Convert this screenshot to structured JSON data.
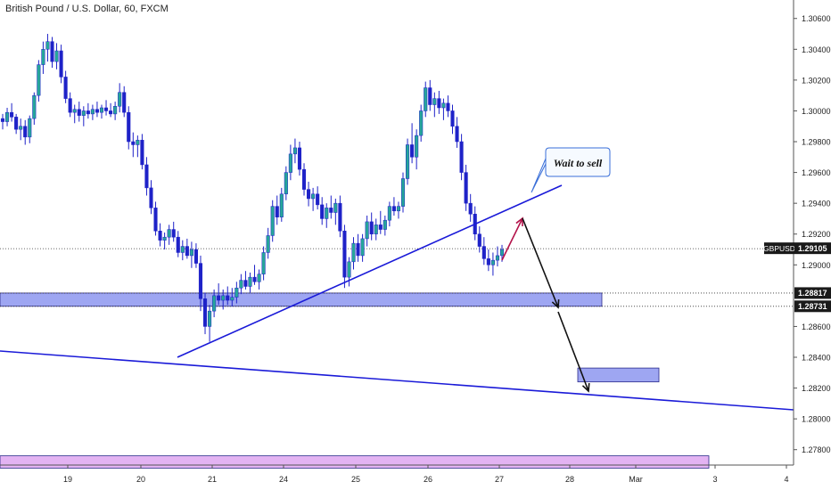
{
  "chart_data": {
    "type": "candlestick",
    "title": "British Pound / U.S. Dollar, 60, FXCM",
    "symbol": "GBPUSD",
    "last_price": 1.29105,
    "ylim": [
      1.277,
      1.3072
    ],
    "grid": false,
    "y_ticks": [
      "1.30600",
      "1.30400",
      "1.30200",
      "1.30000",
      "1.29800",
      "1.29600",
      "1.29400",
      "1.29200",
      "1.29000",
      "1.28600",
      "1.28400",
      "1.28200",
      "1.28000",
      "1.27800"
    ],
    "y_tick_values": [
      1.306,
      1.304,
      1.302,
      1.3,
      1.298,
      1.296,
      1.294,
      1.292,
      1.29,
      1.286,
      1.284,
      1.282,
      1.28,
      1.278
    ],
    "x_ticks": [
      "19",
      "20",
      "21",
      "24",
      "25",
      "26",
      "27",
      "28",
      "Mar",
      "3",
      "4"
    ],
    "price_labels": [
      {
        "text": "GBPUSD",
        "value": 1.29105,
        "style": "dark"
      },
      {
        "text": "1.29105",
        "value": 1.29105,
        "style": "dark"
      },
      {
        "text": "1.28817",
        "value": 1.28817,
        "style": "dark"
      },
      {
        "text": "1.28731",
        "value": 1.28731,
        "style": "dark"
      }
    ],
    "horizontal_levels": [
      1.29105,
      1.28817,
      1.28731
    ],
    "zones": [
      {
        "from_tick": "19",
        "to_tick": "28",
        "low": 1.28731,
        "high": 1.28817,
        "color": "#9ea6f2"
      },
      {
        "from_tick": "28",
        "to_tick": "Mar",
        "low": 1.2824,
        "high": 1.2833,
        "color": "#9ea6f2"
      },
      {
        "from_tick": "19",
        "to_tick": "3",
        "low": 1.2768,
        "high": 1.2776,
        "color": "#e3b3f2"
      }
    ],
    "callout": {
      "text": "Wait to sell"
    },
    "accent_colors": {
      "up": "#26a69a",
      "down": "#1e22c8",
      "trendline": "#1a1ad8",
      "arrow_up": "#b3124a",
      "arrow_down": "#111111"
    },
    "candles": [
      [
        1.2995,
        1.2998,
        1.2988,
        1.2993
      ],
      [
        1.2993,
        1.3002,
        1.299,
        1.2999
      ],
      [
        1.2999,
        1.3005,
        1.2993,
        1.2996
      ],
      [
        1.2996,
        1.2998,
        1.2985,
        1.2988
      ],
      [
        1.2988,
        1.2995,
        1.2981,
        1.299
      ],
      [
        1.299,
        1.2994,
        1.2978,
        1.2983
      ],
      [
        1.2983,
        1.2997,
        1.2979,
        1.2995
      ],
      [
        1.2995,
        1.3012,
        1.2991,
        1.301
      ],
      [
        1.301,
        1.3033,
        1.3006,
        1.303
      ],
      [
        1.303,
        1.3045,
        1.3024,
        1.304
      ],
      [
        1.304,
        1.305,
        1.3032,
        1.3045
      ],
      [
        1.3045,
        1.3048,
        1.3028,
        1.3032
      ],
      [
        1.3032,
        1.3044,
        1.3027,
        1.3039
      ],
      [
        1.3039,
        1.3043,
        1.3018,
        1.3022
      ],
      [
        1.3022,
        1.3026,
        1.3005,
        1.3008
      ],
      [
        1.3008,
        1.3012,
        1.2996,
        1.2999
      ],
      [
        1.2999,
        1.3004,
        1.2992,
        1.3001
      ],
      [
        1.3001,
        1.3006,
        1.2993,
        1.2997
      ],
      [
        1.2997,
        1.3003,
        1.299,
        1.3
      ],
      [
        1.3,
        1.3005,
        1.2995,
        1.2998
      ],
      [
        1.2998,
        1.3004,
        1.2994,
        1.3001
      ],
      [
        1.3001,
        1.3006,
        1.2996,
        1.2999
      ],
      [
        1.2999,
        1.3004,
        1.2995,
        1.3002
      ],
      [
        1.3002,
        1.3007,
        1.2997,
        1.3
      ],
      [
        1.3,
        1.3005,
        1.2996,
        1.2998
      ],
      [
        1.2998,
        1.3006,
        1.2994,
        1.3003
      ],
      [
        1.3003,
        1.3018,
        1.2999,
        1.3012
      ],
      [
        1.3012,
        1.3016,
        1.2996,
        1.2999
      ],
      [
        1.2999,
        1.3003,
        1.2975,
        1.298
      ],
      [
        1.298,
        1.2986,
        1.297,
        1.2978
      ],
      [
        1.2978,
        1.2984,
        1.297,
        1.2981
      ],
      [
        1.2981,
        1.2985,
        1.2962,
        1.2965
      ],
      [
        1.2965,
        1.297,
        1.2945,
        1.295
      ],
      [
        1.295,
        1.2955,
        1.2933,
        1.2937
      ],
      [
        1.2937,
        1.2941,
        1.2919,
        1.2922
      ],
      [
        1.2922,
        1.2927,
        1.2912,
        1.2916
      ],
      [
        1.2916,
        1.2921,
        1.291,
        1.2918
      ],
      [
        1.2918,
        1.2926,
        1.2913,
        1.2923
      ],
      [
        1.2923,
        1.2928,
        1.2915,
        1.2918
      ],
      [
        1.2918,
        1.2922,
        1.2905,
        1.2908
      ],
      [
        1.2908,
        1.2916,
        1.2903,
        1.2912
      ],
      [
        1.2912,
        1.2917,
        1.2904,
        1.2906
      ],
      [
        1.2906,
        1.2915,
        1.2898,
        1.291
      ],
      [
        1.291,
        1.2914,
        1.2898,
        1.2901
      ],
      [
        1.2901,
        1.2906,
        1.287,
        1.2878
      ],
      [
        1.2878,
        1.2882,
        1.2855,
        1.286
      ],
      [
        1.286,
        1.2874,
        1.285,
        1.287
      ],
      [
        1.287,
        1.2884,
        1.2866,
        1.288
      ],
      [
        1.288,
        1.2888,
        1.2874,
        1.2877
      ],
      [
        1.2877,
        1.2884,
        1.2871,
        1.288
      ],
      [
        1.288,
        1.2886,
        1.2874,
        1.2877
      ],
      [
        1.2877,
        1.2885,
        1.2873,
        1.2879
      ],
      [
        1.2879,
        1.2889,
        1.2875,
        1.2885
      ],
      [
        1.2885,
        1.2894,
        1.2881,
        1.289
      ],
      [
        1.289,
        1.2896,
        1.2884,
        1.2886
      ],
      [
        1.2886,
        1.2895,
        1.2882,
        1.2892
      ],
      [
        1.2892,
        1.29,
        1.2887,
        1.2889
      ],
      [
        1.2889,
        1.2897,
        1.2884,
        1.2894
      ],
      [
        1.2894,
        1.2912,
        1.289,
        1.2908
      ],
      [
        1.2908,
        1.2924,
        1.2904,
        1.2919
      ],
      [
        1.2919,
        1.2942,
        1.2915,
        1.2938
      ],
      [
        1.2938,
        1.2945,
        1.2926,
        1.2931
      ],
      [
        1.2931,
        1.295,
        1.2928,
        1.2946
      ],
      [
        1.2946,
        1.2964,
        1.2942,
        1.296
      ],
      [
        1.296,
        1.2978,
        1.2955,
        1.2972
      ],
      [
        1.2972,
        1.2982,
        1.2966,
        1.2976
      ],
      [
        1.2976,
        1.298,
        1.2958,
        1.2962
      ],
      [
        1.2962,
        1.2966,
        1.2945,
        1.2949
      ],
      [
        1.2949,
        1.2954,
        1.2938,
        1.2943
      ],
      [
        1.2943,
        1.295,
        1.2935,
        1.2946
      ],
      [
        1.2946,
        1.2951,
        1.2936,
        1.2939
      ],
      [
        1.2939,
        1.2944,
        1.2926,
        1.293
      ],
      [
        1.293,
        1.294,
        1.2924,
        1.2937
      ],
      [
        1.2937,
        1.2945,
        1.293,
        1.2934
      ],
      [
        1.2934,
        1.2943,
        1.2926,
        1.294
      ],
      [
        1.294,
        1.2945,
        1.2918,
        1.2922
      ],
      [
        1.2922,
        1.2926,
        1.2885,
        1.2892
      ],
      [
        1.2892,
        1.2905,
        1.2886,
        1.2902
      ],
      [
        1.2902,
        1.2918,
        1.2897,
        1.2914
      ],
      [
        1.2914,
        1.292,
        1.2902,
        1.2906
      ],
      [
        1.2906,
        1.292,
        1.2902,
        1.2917
      ],
      [
        1.2917,
        1.2932,
        1.2912,
        1.2928
      ],
      [
        1.2928,
        1.2934,
        1.2916,
        1.292
      ],
      [
        1.292,
        1.293,
        1.2916,
        1.2926
      ],
      [
        1.2926,
        1.2935,
        1.292,
        1.2923
      ],
      [
        1.2923,
        1.2932,
        1.2919,
        1.2929
      ],
      [
        1.2929,
        1.2941,
        1.2925,
        1.2938
      ],
      [
        1.2938,
        1.2944,
        1.2932,
        1.2935
      ],
      [
        1.2935,
        1.2941,
        1.293,
        1.2938
      ],
      [
        1.2938,
        1.296,
        1.2934,
        1.2956
      ],
      [
        1.2956,
        1.2982,
        1.2952,
        1.2978
      ],
      [
        1.2978,
        1.2992,
        1.2966,
        1.297
      ],
      [
        1.297,
        1.2988,
        1.2962,
        1.2984
      ],
      [
        1.2984,
        1.3004,
        1.298,
        1.3
      ],
      [
        1.3,
        1.3019,
        1.2996,
        1.3015
      ],
      [
        1.3015,
        1.302,
        1.3,
        1.3004
      ],
      [
        1.3004,
        1.3012,
        1.2996,
        1.3008
      ],
      [
        1.3008,
        1.3013,
        1.2998,
        1.3002
      ],
      [
        1.3002,
        1.3008,
        1.2994,
        1.3005
      ],
      [
        1.3005,
        1.301,
        1.2996,
        1.3
      ],
      [
        1.3,
        1.3004,
        1.2985,
        1.299
      ],
      [
        1.299,
        1.2996,
        1.2976,
        1.298
      ],
      [
        1.298,
        1.2985,
        1.2955,
        1.296
      ],
      [
        1.296,
        1.2965,
        1.2935,
        1.294
      ],
      [
        1.294,
        1.2946,
        1.2928,
        1.2933
      ],
      [
        1.2933,
        1.2938,
        1.2916,
        1.292
      ],
      [
        1.292,
        1.2925,
        1.2908,
        1.2912
      ],
      [
        1.2912,
        1.2918,
        1.29,
        1.2904
      ],
      [
        1.2904,
        1.291,
        1.2896,
        1.29
      ],
      [
        1.29,
        1.2908,
        1.2893,
        1.2903
      ],
      [
        1.2903,
        1.2912,
        1.2899,
        1.2906
      ],
      [
        1.2906,
        1.2913,
        1.2902,
        1.291
      ]
    ]
  }
}
